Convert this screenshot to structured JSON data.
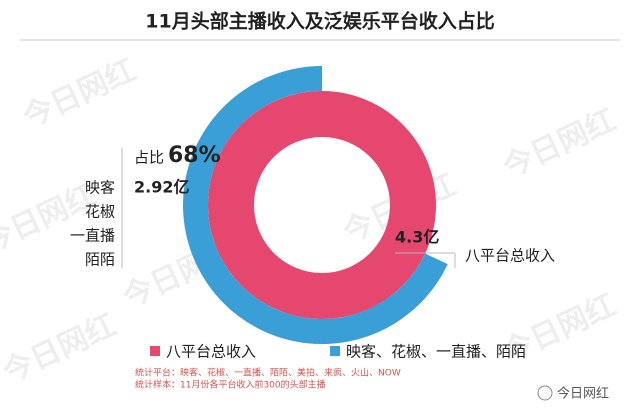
{
  "chart_data": {
    "type": "donut",
    "title": "11月头部主播收入及泛娱乐平台收入占比",
    "series": [
      {
        "name": "八平台总收入",
        "color": "#e5476f",
        "values": [
          4.3
        ],
        "value_labels": [
          "4.3亿"
        ]
      },
      {
        "name": "映客、花椒、一直播、陌陌",
        "color": "#3a9fd6",
        "values": [
          2.92
        ],
        "value_labels": [
          "2.92亿"
        ]
      }
    ],
    "share": {
      "label": "占比",
      "value": 68,
      "value_label": "68%"
    },
    "left_label_lines": [
      "映客",
      "花椒",
      "一直播",
      "陌陌"
    ],
    "right_label": "八平台总收入",
    "notes": [
      "统计平台：映客、花椒、一直播、陌陌、美拍、来疯、火山、NOW",
      "统计样本：11月份各平台收入前300的头部主播"
    ],
    "watermark": "今日网红",
    "logo": "今日网红"
  }
}
